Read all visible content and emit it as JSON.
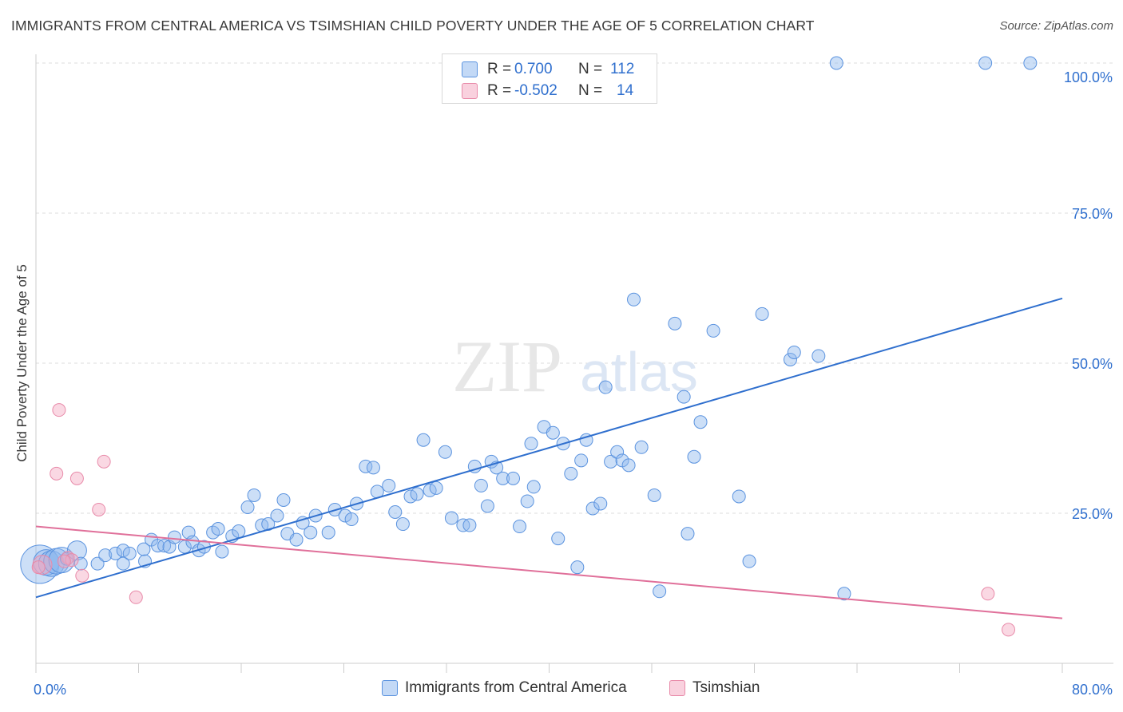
{
  "title": "IMMIGRANTS FROM CENTRAL AMERICA VS TSIMSHIAN CHILD POVERTY UNDER THE AGE OF 5 CORRELATION CHART",
  "source": "Source: ZipAtlas.com",
  "watermark": {
    "zip": "ZIP",
    "atlas": "atlas"
  },
  "stats": [
    {
      "r_label": "R =",
      "r_value": "0.700",
      "n_label": "N =",
      "n_value": "112",
      "color": "#8fb8ee"
    },
    {
      "r_label": "R =",
      "r_value": "-0.502",
      "n_label": "N =",
      "n_value": "14",
      "color": "#f3a8c1"
    }
  ],
  "legend": [
    {
      "label": "Immigrants from Central America",
      "color": "#8fb8ee"
    },
    {
      "label": "Tsimshian",
      "color": "#f3a8c1"
    }
  ],
  "chart_data": {
    "type": "scatter",
    "title": "IMMIGRANTS FROM CENTRAL AMERICA VS TSIMSHIAN CHILD POVERTY UNDER THE AGE OF 5 CORRELATION CHART",
    "xlabel": "",
    "ylabel": "Child Poverty Under the Age of 5",
    "xlim": [
      0,
      80
    ],
    "ylim": [
      0,
      100
    ],
    "x_tick_labels": [
      "0.0%",
      "80.0%"
    ],
    "y_tick_labels": [
      "100.0%",
      "75.0%",
      "50.0%",
      "25.0%"
    ],
    "y_ticks": [
      100,
      75,
      50,
      25
    ],
    "grid": true,
    "legend_position": "bottom",
    "series": [
      {
        "name": "Immigrants from Central America",
        "color": "#8fb8ee",
        "stroke": "#5b93df",
        "trend": {
          "x": [
            0,
            80
          ],
          "y": [
            11.0,
            60.8
          ],
          "color": "#2f6fce"
        },
        "points": [
          [
            0.3,
            16.5,
            3
          ],
          [
            0.8,
            16.8,
            2
          ],
          [
            1.2,
            16.6,
            2
          ],
          [
            1.6,
            17.0,
            2
          ],
          [
            2.0,
            17.2,
            2
          ],
          [
            2.4,
            17.4,
            1
          ],
          [
            3.2,
            18.8,
            1.5
          ],
          [
            3.5,
            16.6,
            1
          ],
          [
            4.8,
            16.6,
            1
          ],
          [
            5.4,
            18.0,
            1
          ],
          [
            6.2,
            18.3,
            1
          ],
          [
            6.8,
            18.8,
            1
          ],
          [
            7.3,
            18.3,
            1
          ],
          [
            8.4,
            19.0,
            1
          ],
          [
            6.8,
            16.6,
            1
          ],
          [
            8.5,
            17.0,
            1
          ],
          [
            9.0,
            20.6,
            1
          ],
          [
            9.5,
            19.6,
            1
          ],
          [
            10.0,
            19.6,
            1
          ],
          [
            10.4,
            19.4,
            1
          ],
          [
            10.8,
            21.0,
            1
          ],
          [
            11.6,
            19.4,
            1
          ],
          [
            11.9,
            21.8,
            1
          ],
          [
            12.2,
            20.2,
            1
          ],
          [
            12.7,
            18.8,
            1
          ],
          [
            13.1,
            19.4,
            1
          ],
          [
            13.8,
            21.8,
            1
          ],
          [
            14.2,
            22.4,
            1
          ],
          [
            14.5,
            18.6,
            1
          ],
          [
            15.3,
            21.2,
            1
          ],
          [
            15.8,
            22.0,
            1
          ],
          [
            16.5,
            26.0,
            1
          ],
          [
            17.0,
            28.0,
            1
          ],
          [
            17.6,
            23.0,
            1
          ],
          [
            18.1,
            23.2,
            1
          ],
          [
            18.8,
            24.6,
            1
          ],
          [
            19.3,
            27.2,
            1
          ],
          [
            19.6,
            21.6,
            1
          ],
          [
            20.3,
            20.6,
            1
          ],
          [
            20.8,
            23.4,
            1
          ],
          [
            21.4,
            21.8,
            1
          ],
          [
            21.8,
            24.6,
            1
          ],
          [
            22.8,
            21.8,
            1
          ],
          [
            23.3,
            25.6,
            1
          ],
          [
            24.1,
            24.6,
            1
          ],
          [
            24.6,
            24.0,
            1
          ],
          [
            25.0,
            26.6,
            1
          ],
          [
            25.7,
            32.8,
            1
          ],
          [
            26.3,
            32.6,
            1
          ],
          [
            26.6,
            28.6,
            1
          ],
          [
            27.5,
            29.6,
            1
          ],
          [
            28.0,
            25.2,
            1
          ],
          [
            28.6,
            23.2,
            1
          ],
          [
            29.2,
            27.8,
            1
          ],
          [
            29.7,
            28.2,
            1
          ],
          [
            30.2,
            37.2,
            1
          ],
          [
            30.7,
            28.8,
            1
          ],
          [
            31.2,
            29.2,
            1
          ],
          [
            31.9,
            35.2,
            1
          ],
          [
            32.4,
            24.2,
            1
          ],
          [
            33.3,
            23.0,
            1
          ],
          [
            33.8,
            23.0,
            1
          ],
          [
            34.2,
            32.8,
            1
          ],
          [
            34.7,
            29.6,
            1
          ],
          [
            35.2,
            26.2,
            1
          ],
          [
            35.5,
            33.6,
            1
          ],
          [
            35.9,
            32.6,
            1
          ],
          [
            36.4,
            30.8,
            1
          ],
          [
            37.2,
            30.8,
            1
          ],
          [
            37.7,
            22.8,
            1
          ],
          [
            38.3,
            27.0,
            1
          ],
          [
            38.6,
            36.6,
            1
          ],
          [
            38.8,
            29.4,
            1
          ],
          [
            39.6,
            39.4,
            1
          ],
          [
            40.3,
            38.4,
            1
          ],
          [
            40.7,
            20.8,
            1
          ],
          [
            41.1,
            36.6,
            1
          ],
          [
            41.7,
            31.6,
            1
          ],
          [
            42.2,
            16.0,
            1
          ],
          [
            42.5,
            33.8,
            1
          ],
          [
            42.9,
            37.2,
            1
          ],
          [
            43.4,
            25.8,
            1
          ],
          [
            44.0,
            26.6,
            1
          ],
          [
            44.4,
            46.0,
            1
          ],
          [
            44.8,
            33.6,
            1
          ],
          [
            45.3,
            35.2,
            1
          ],
          [
            45.7,
            33.8,
            1
          ],
          [
            46.2,
            33.0,
            1
          ],
          [
            46.6,
            60.6,
            1
          ],
          [
            47.2,
            36.0,
            1
          ],
          [
            48.2,
            28.0,
            1
          ],
          [
            48.6,
            12.0,
            1
          ],
          [
            49.8,
            56.6,
            1
          ],
          [
            50.5,
            44.4,
            1
          ],
          [
            50.8,
            21.6,
            1
          ],
          [
            51.3,
            34.4,
            1
          ],
          [
            51.8,
            40.2,
            1
          ],
          [
            52.8,
            55.4,
            1
          ],
          [
            54.8,
            27.8,
            1
          ],
          [
            55.6,
            17.0,
            1
          ],
          [
            56.6,
            58.2,
            1
          ],
          [
            58.8,
            50.6,
            1
          ],
          [
            59.1,
            51.8,
            1
          ],
          [
            61.0,
            51.2,
            1
          ],
          [
            62.4,
            100.0,
            1
          ],
          [
            63.0,
            11.6,
            1
          ],
          [
            74.0,
            100.0,
            1
          ],
          [
            77.5,
            100.0,
            1
          ]
        ]
      },
      {
        "name": "Tsimshian",
        "color": "#f3a8c1",
        "stroke": "#e88aa9",
        "trend": {
          "x": [
            0,
            80
          ],
          "y": [
            22.8,
            7.5
          ],
          "color": "#e0709a"
        },
        "points": [
          [
            0.5,
            16.4,
            1.5
          ],
          [
            1.6,
            31.6,
            1
          ],
          [
            1.8,
            42.2,
            1
          ],
          [
            2.5,
            17.6,
            1
          ],
          [
            2.8,
            17.2,
            1
          ],
          [
            3.2,
            30.8,
            1
          ],
          [
            3.6,
            14.6,
            1
          ],
          [
            4.9,
            25.6,
            1
          ],
          [
            5.3,
            33.6,
            1
          ],
          [
            7.8,
            11.0,
            1
          ],
          [
            74.2,
            11.6,
            1
          ],
          [
            75.8,
            5.6,
            1
          ],
          [
            0.2,
            16.0,
            1
          ],
          [
            2.2,
            17.0,
            1
          ]
        ]
      }
    ]
  }
}
